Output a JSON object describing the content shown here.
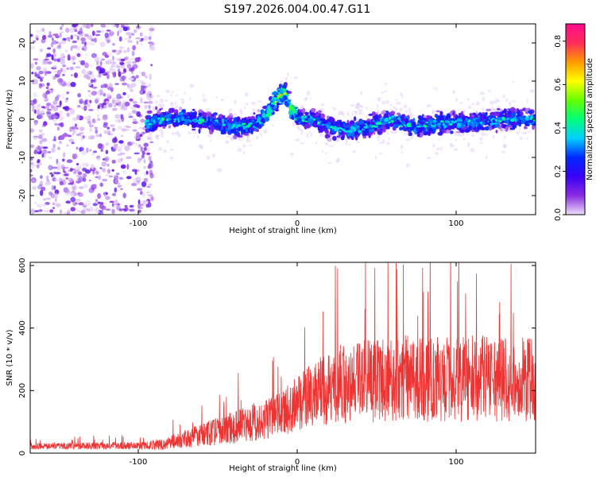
{
  "title": "S197.2026.004.00.47.G11",
  "chart_data": [
    {
      "type": "heatmap",
      "xlabel": "Height of straight line (km)",
      "ylabel": "Frequency (Hz)",
      "xlim": [
        -168,
        150
      ],
      "ylim": [
        -25,
        25
      ],
      "x_ticks": [
        -100,
        0,
        100
      ],
      "y_ticks": [
        -20,
        -10,
        0,
        10,
        20
      ],
      "colorbar": {
        "label": "Normalized spectral amplitude",
        "range": [
          0.0,
          0.88
        ],
        "ticks": [
          0.0,
          0.2,
          0.4,
          0.6,
          0.8
        ],
        "colors": [
          "#ece0f8",
          "#8a2be2",
          "#3a00f5",
          "#0028ff",
          "#00cfff",
          "#00ff7a",
          "#66ff00",
          "#ffff00",
          "#ff9900",
          "#ff2d5a",
          "#ff0a8c"
        ]
      },
      "features": {
        "scatter_region_km": [
          -168,
          -95
        ],
        "ridge": [
          {
            "x": -95,
            "y": -1
          },
          {
            "x": -85,
            "y": 0
          },
          {
            "x": -70,
            "y": 0
          },
          {
            "x": -50,
            "y": -1
          },
          {
            "x": -35,
            "y": -2
          },
          {
            "x": -25,
            "y": -1
          },
          {
            "x": -18,
            "y": 2
          },
          {
            "x": -12,
            "y": 6
          },
          {
            "x": -8,
            "y": 7
          },
          {
            "x": -4,
            "y": 3
          },
          {
            "x": 2,
            "y": 0
          },
          {
            "x": 10,
            "y": 0
          },
          {
            "x": 20,
            "y": -2
          },
          {
            "x": 30,
            "y": -3
          },
          {
            "x": 45,
            "y": -2
          },
          {
            "x": 60,
            "y": 0
          },
          {
            "x": 75,
            "y": -2
          },
          {
            "x": 90,
            "y": -1
          },
          {
            "x": 110,
            "y": -1
          },
          {
            "x": 130,
            "y": 0
          },
          {
            "x": 150,
            "y": 0
          }
        ]
      }
    },
    {
      "type": "line",
      "xlabel": "Height of straight line (km)",
      "ylabel": "SNR (10 * v/v)",
      "xlim": [
        -168,
        150
      ],
      "ylim": [
        0,
        610
      ],
      "x_ticks": [
        -100,
        0,
        100
      ],
      "y_ticks": [
        0,
        200,
        400,
        600
      ],
      "color": "#ee3333",
      "trend": [
        {
          "x": -168,
          "mean": 22,
          "amp": 10
        },
        {
          "x": -100,
          "mean": 24,
          "amp": 12
        },
        {
          "x": -85,
          "mean": 28,
          "amp": 18
        },
        {
          "x": -70,
          "mean": 45,
          "amp": 30
        },
        {
          "x": -50,
          "mean": 70,
          "amp": 45
        },
        {
          "x": -30,
          "mean": 95,
          "amp": 60
        },
        {
          "x": -10,
          "mean": 125,
          "amp": 70
        },
        {
          "x": 0,
          "mean": 160,
          "amp": 90
        },
        {
          "x": 15,
          "mean": 200,
          "amp": 110
        },
        {
          "x": 30,
          "mean": 225,
          "amp": 130
        },
        {
          "x": 60,
          "mean": 240,
          "amp": 140
        },
        {
          "x": 100,
          "mean": 240,
          "amp": 140
        },
        {
          "x": 150,
          "mean": 235,
          "amp": 135
        }
      ]
    }
  ]
}
